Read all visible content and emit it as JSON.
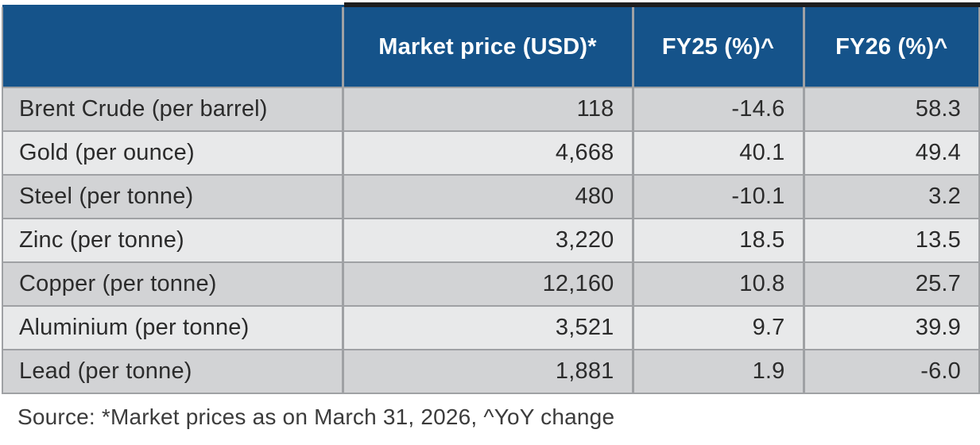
{
  "table": {
    "columns": [
      {
        "label": ""
      },
      {
        "label": "Market price (USD)*"
      },
      {
        "label": "FY25 (%)^"
      },
      {
        "label": "FY26 (%)^"
      }
    ],
    "rows": [
      {
        "label": "Brent Crude (per barrel)",
        "market_price": "118",
        "fy25": "-14.6",
        "fy26": "58.3"
      },
      {
        "label": "Gold (per ounce)",
        "market_price": "4,668",
        "fy25": "40.1",
        "fy26": "49.4"
      },
      {
        "label": "Steel (per tonne)",
        "market_price": "480",
        "fy25": "-10.1",
        "fy26": "3.2"
      },
      {
        "label": "Zinc (per tonne)",
        "market_price": "3,220",
        "fy25": "18.5",
        "fy26": "13.5"
      },
      {
        "label": "Copper (per tonne)",
        "market_price": "12,160",
        "fy25": "10.8",
        "fy26": "25.7"
      },
      {
        "label": "Aluminium (per tonne)",
        "market_price": "3,521",
        "fy25": "9.7",
        "fy26": "39.9"
      },
      {
        "label": "Lead (per tonne)",
        "market_price": "1,881",
        "fy25": "1.9",
        "fy26": "-6.0"
      }
    ]
  },
  "footnote": {
    "text": "Source: *Market prices as on March 31, 2026, ^YoY change"
  },
  "colors": {
    "header_bg": "#15538a",
    "header_text": "#ffffff",
    "row_dark": "#d2d3d5",
    "row_light": "#e8e9ea",
    "grid_line": "#9fa1a4",
    "top_accent": "#1e1e1e",
    "body_text": "#2b2b2b"
  },
  "chart_data": {
    "type": "table",
    "title": "",
    "columns": [
      "",
      "Market price (USD)*",
      "FY25 (%)^",
      "FY26 (%)^"
    ],
    "rows": [
      [
        "Brent Crude (per barrel)",
        118,
        -14.6,
        58.3
      ],
      [
        "Gold (per ounce)",
        4668,
        40.1,
        49.4
      ],
      [
        "Steel (per tonne)",
        480,
        -10.1,
        3.2
      ],
      [
        "Zinc (per tonne)",
        3220,
        18.5,
        13.5
      ],
      [
        "Copper (per tonne)",
        12160,
        10.8,
        25.7
      ],
      [
        "Aluminium (per tonne)",
        3521,
        9.7,
        39.9
      ],
      [
        "Lead (per tonne)",
        1881,
        1.9,
        -6.0
      ]
    ],
    "footnote": "Source: *Market prices as on March 31, 2026, ^YoY change",
    "layout_hints": {
      "header_style": "dark-blue with black top accent over data columns",
      "row_striping": "alternating dark/light gray starting dark",
      "value_alignment": "right",
      "label_alignment": "left"
    }
  }
}
